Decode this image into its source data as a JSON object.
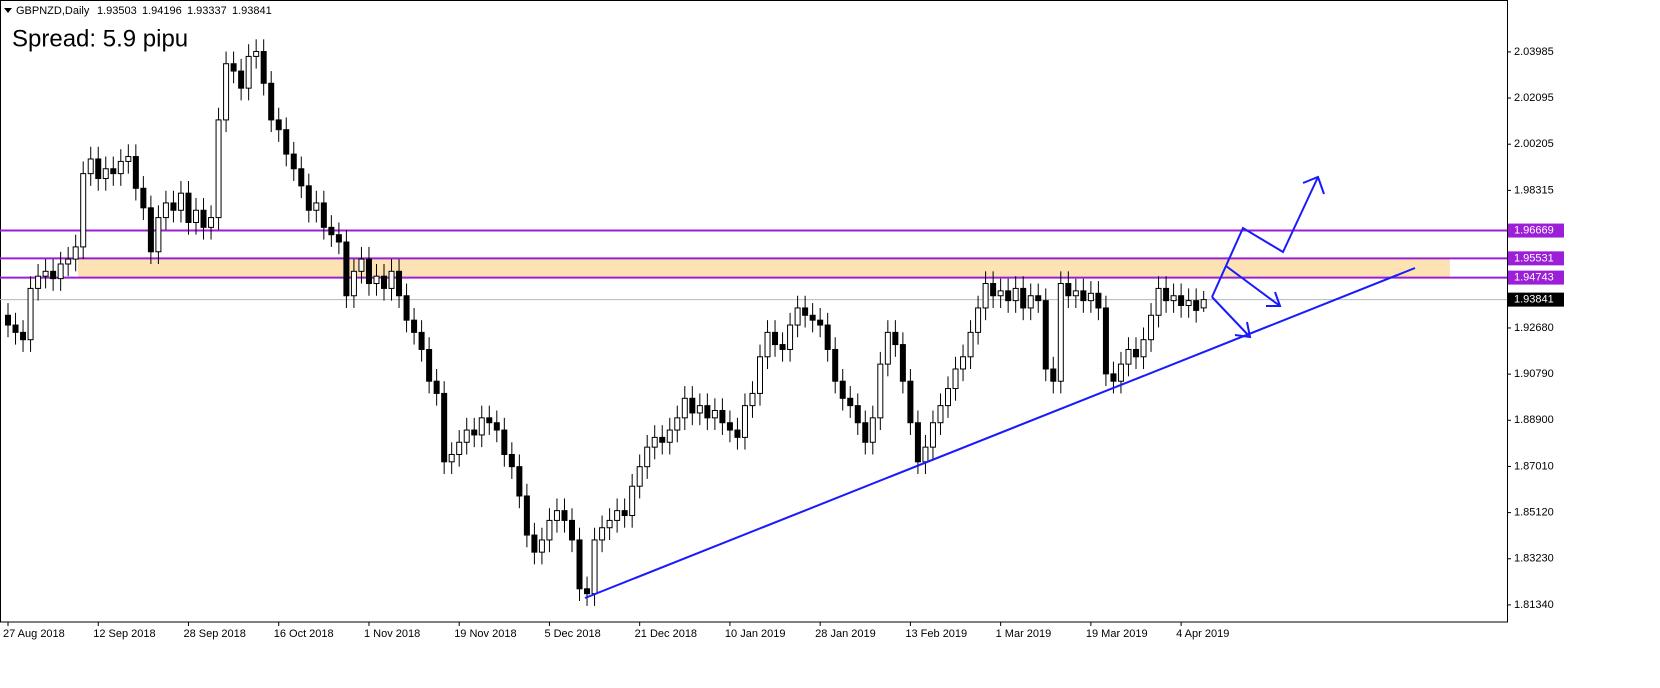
{
  "chart_data": {
    "type": "candlestick",
    "symbol": "GBPNZD,Daily",
    "annotation": "Spread: 5.9 pipu",
    "categories": [
      "27 Aug 2018",
      null,
      null,
      null,
      null,
      null,
      null,
      null,
      null,
      null,
      null,
      null,
      "12 Sep 2018",
      null,
      null,
      null,
      null,
      null,
      null,
      null,
      null,
      null,
      null,
      null,
      "28 Sep 2018",
      null,
      null,
      null,
      null,
      null,
      null,
      null,
      null,
      null,
      null,
      null,
      "16 Oct 2018",
      null,
      null,
      null,
      null,
      null,
      null,
      null,
      null,
      null,
      null,
      null,
      "1 Nov 2018",
      null,
      null,
      null,
      null,
      null,
      null,
      null,
      null,
      null,
      null,
      null,
      "19 Nov 2018",
      null,
      null,
      null,
      null,
      null,
      null,
      null,
      null,
      null,
      null,
      null,
      "5 Dec 2018",
      null,
      null,
      null,
      null,
      null,
      null,
      null,
      null,
      null,
      null,
      null,
      "21 Dec 2018",
      null,
      null,
      null,
      null,
      null,
      null,
      null,
      null,
      null,
      null,
      null,
      "10 Jan 2019",
      null,
      null,
      null,
      null,
      null,
      null,
      null,
      null,
      null,
      null,
      null,
      "28 Jan 2019",
      null,
      null,
      null,
      null,
      null,
      null,
      null,
      null,
      null,
      null,
      null,
      "13 Feb 2019",
      null,
      null,
      null,
      null,
      null,
      null,
      null,
      null,
      null,
      null,
      null,
      "1 Mar 2019",
      null,
      null,
      null,
      null,
      null,
      null,
      null,
      null,
      null,
      null,
      null,
      "19 Mar 2019",
      null,
      null,
      null,
      null,
      null,
      null,
      null,
      null,
      null,
      null,
      null,
      "4 Apr 2019",
      null,
      null,
      null
    ],
    "open": [
      1.932,
      1.928,
      1.925,
      1.922,
      1.943,
      1.948,
      1.95,
      1.947,
      1.953,
      1.955,
      1.96,
      1.99,
      1.996,
      1.988,
      1.992,
      1.99,
      1.995,
      1.997,
      1.984,
      1.976,
      1.958,
      1.972,
      1.978,
      1.975,
      1.982,
      1.97,
      1.975,
      1.968,
      1.972,
      2.012,
      2.035,
      2.032,
      2.025,
      2.038,
      2.04,
      2.027,
      2.012,
      2.008,
      1.998,
      1.992,
      1.985,
      1.975,
      1.978,
      1.968,
      1.965,
      1.962,
      1.94,
      1.95,
      1.955,
      1.945,
      1.948,
      1.943,
      1.95,
      1.94,
      1.93,
      1.925,
      1.918,
      1.905,
      1.9,
      1.872,
      1.875,
      1.88,
      1.885,
      1.883,
      1.89,
      1.888,
      1.885,
      1.875,
      1.87,
      1.858,
      1.842,
      1.835,
      1.84,
      1.848,
      1.852,
      1.848,
      1.84,
      1.82,
      1.818,
      1.84,
      1.845,
      1.848,
      1.852,
      1.85,
      1.862,
      1.87,
      1.878,
      1.882,
      1.88,
      1.885,
      1.89,
      1.898,
      1.892,
      1.895,
      1.89,
      1.893,
      1.888,
      1.885,
      1.882,
      1.895,
      1.9,
      1.915,
      1.925,
      1.92,
      1.918,
      1.928,
      1.935,
      1.932,
      1.93,
      1.928,
      1.918,
      1.905,
      1.898,
      1.895,
      1.888,
      1.88,
      1.89,
      1.912,
      1.925,
      1.92,
      1.905,
      1.888,
      1.872,
      1.878,
      1.888,
      1.895,
      1.902,
      1.91,
      1.915,
      1.925,
      1.935,
      1.945,
      1.94,
      1.942,
      1.938,
      1.943,
      1.935,
      1.94,
      1.938,
      1.91,
      1.905,
      1.945,
      1.94,
      1.942,
      1.938,
      1.941,
      1.935,
      1.908,
      1.905,
      1.912,
      1.918,
      1.915,
      1.922,
      1.932,
      1.943,
      1.938,
      1.94,
      1.936,
      1.938,
      1.93503
    ],
    "high": [
      1.937,
      1.933,
      1.93,
      1.948,
      1.953,
      1.955,
      1.955,
      1.958,
      1.96,
      1.965,
      1.995,
      2.001,
      2.001,
      1.997,
      1.997,
      2.0,
      2.002,
      2.002,
      1.989,
      1.981,
      1.977,
      1.983,
      1.983,
      1.987,
      1.987,
      1.98,
      1.98,
      1.977,
      2.017,
      2.04,
      2.04,
      2.037,
      2.043,
      2.045,
      2.045,
      2.032,
      2.017,
      2.013,
      2.003,
      1.997,
      1.99,
      1.983,
      1.983,
      1.973,
      1.97,
      1.967,
      1.955,
      1.96,
      1.96,
      1.953,
      1.953,
      1.955,
      1.955,
      1.945,
      1.935,
      1.93,
      1.923,
      1.91,
      1.905,
      1.88,
      1.885,
      1.89,
      1.89,
      1.895,
      1.895,
      1.893,
      1.89,
      1.88,
      1.875,
      1.863,
      1.847,
      1.845,
      1.853,
      1.857,
      1.857,
      1.853,
      1.845,
      1.825,
      1.845,
      1.85,
      1.853,
      1.857,
      1.857,
      1.867,
      1.875,
      1.883,
      1.887,
      1.887,
      1.89,
      1.895,
      1.903,
      1.903,
      1.9,
      1.9,
      1.898,
      1.898,
      1.893,
      1.89,
      1.9,
      1.905,
      1.92,
      1.93,
      1.93,
      1.925,
      1.933,
      1.94,
      1.94,
      1.937,
      1.935,
      1.933,
      1.923,
      1.91,
      1.903,
      1.9,
      1.893,
      1.895,
      1.917,
      1.93,
      1.93,
      1.925,
      1.91,
      1.893,
      1.883,
      1.893,
      1.9,
      1.907,
      1.915,
      1.92,
      1.93,
      1.94,
      1.95,
      1.95,
      1.947,
      1.947,
      1.948,
      1.948,
      1.945,
      1.945,
      1.943,
      1.915,
      1.95,
      1.95,
      1.947,
      1.947,
      1.946,
      1.946,
      1.94,
      1.913,
      1.917,
      1.923,
      1.923,
      1.927,
      1.937,
      1.948,
      1.948,
      1.945,
      1.945,
      1.943,
      1.943,
      1.94196
    ],
    "low": [
      1.923,
      1.92,
      1.917,
      1.917,
      1.938,
      1.943,
      1.942,
      1.942,
      1.948,
      1.95,
      1.955,
      1.985,
      1.983,
      1.983,
      1.985,
      1.985,
      1.99,
      1.979,
      1.971,
      1.953,
      1.953,
      1.967,
      1.97,
      1.97,
      1.965,
      1.965,
      1.963,
      1.963,
      1.967,
      2.007,
      2.027,
      2.02,
      2.02,
      2.033,
      2.022,
      2.007,
      2.003,
      1.993,
      1.987,
      1.98,
      1.97,
      1.97,
      1.963,
      1.96,
      1.957,
      1.935,
      1.935,
      1.945,
      1.94,
      1.94,
      1.938,
      1.938,
      1.935,
      1.925,
      1.92,
      1.913,
      1.9,
      1.895,
      1.867,
      1.867,
      1.87,
      1.875,
      1.878,
      1.878,
      1.883,
      1.88,
      1.87,
      1.865,
      1.853,
      1.837,
      1.83,
      1.83,
      1.835,
      1.843,
      1.843,
      1.835,
      1.815,
      1.813,
      1.813,
      1.835,
      1.84,
      1.843,
      1.845,
      1.845,
      1.857,
      1.865,
      1.873,
      1.875,
      1.875,
      1.88,
      1.885,
      1.887,
      1.887,
      1.885,
      1.885,
      1.883,
      1.88,
      1.877,
      1.877,
      1.89,
      1.895,
      1.91,
      1.915,
      1.913,
      1.913,
      1.923,
      1.927,
      1.925,
      1.923,
      1.913,
      1.9,
      1.893,
      1.89,
      1.883,
      1.875,
      1.875,
      1.885,
      1.907,
      1.915,
      1.9,
      1.883,
      1.867,
      1.867,
      1.873,
      1.883,
      1.89,
      1.897,
      1.905,
      1.91,
      1.92,
      1.93,
      1.935,
      1.935,
      1.933,
      1.933,
      1.93,
      1.93,
      1.933,
      1.905,
      1.9,
      1.9,
      1.935,
      1.935,
      1.933,
      1.933,
      1.93,
      1.903,
      1.9,
      1.9,
      1.907,
      1.91,
      1.91,
      1.917,
      1.927,
      1.933,
      1.933,
      1.931,
      1.931,
      1.929,
      1.93337
    ],
    "close": [
      1.928,
      1.925,
      1.922,
      1.943,
      1.948,
      1.95,
      1.947,
      1.953,
      1.955,
      1.96,
      1.99,
      1.996,
      1.988,
      1.992,
      1.99,
      1.995,
      1.997,
      1.984,
      1.976,
      1.958,
      1.972,
      1.978,
      1.975,
      1.982,
      1.97,
      1.975,
      1.968,
      1.972,
      2.012,
      2.035,
      2.032,
      2.025,
      2.038,
      2.04,
      2.027,
      2.012,
      2.008,
      1.998,
      1.992,
      1.985,
      1.975,
      1.978,
      1.968,
      1.965,
      1.962,
      1.94,
      1.95,
      1.955,
      1.945,
      1.948,
      1.943,
      1.95,
      1.94,
      1.93,
      1.925,
      1.918,
      1.905,
      1.9,
      1.872,
      1.875,
      1.88,
      1.885,
      1.883,
      1.89,
      1.888,
      1.885,
      1.875,
      1.87,
      1.858,
      1.842,
      1.835,
      1.84,
      1.848,
      1.852,
      1.848,
      1.84,
      1.82,
      1.818,
      1.84,
      1.845,
      1.848,
      1.852,
      1.85,
      1.862,
      1.87,
      1.878,
      1.882,
      1.88,
      1.885,
      1.89,
      1.898,
      1.892,
      1.895,
      1.89,
      1.893,
      1.888,
      1.885,
      1.882,
      1.895,
      1.9,
      1.915,
      1.925,
      1.92,
      1.918,
      1.928,
      1.935,
      1.932,
      1.93,
      1.928,
      1.918,
      1.905,
      1.898,
      1.895,
      1.888,
      1.88,
      1.89,
      1.912,
      1.925,
      1.92,
      1.905,
      1.888,
      1.872,
      1.878,
      1.888,
      1.895,
      1.902,
      1.91,
      1.915,
      1.925,
      1.935,
      1.945,
      1.94,
      1.942,
      1.938,
      1.943,
      1.935,
      1.94,
      1.938,
      1.91,
      1.905,
      1.945,
      1.94,
      1.942,
      1.938,
      1.941,
      1.935,
      1.908,
      1.905,
      1.912,
      1.918,
      1.915,
      1.922,
      1.932,
      1.943,
      1.938,
      1.94,
      1.936,
      1.938,
      1.934,
      1.93841
    ],
    "up_color": "#ffffff",
    "down_color": "#000000",
    "ylim": [
      1.8064,
      2.0611
    ],
    "yticks": [
      2.03985,
      2.02095,
      2.00205,
      1.98315,
      {
        "value": 1.9268,
        "label": "1.92680"
      },
      {
        "value": 1.9079,
        "label": "1.90790"
      },
      {
        "value": 1.889,
        "label": "1.88900"
      },
      {
        "value": 1.8701,
        "label": "1.87010"
      },
      {
        "value": 1.8512,
        "label": "1.85120"
      },
      {
        "value": 1.8323,
        "label": "1.83230"
      },
      {
        "value": 1.8134,
        "label": "1.81340"
      }
    ],
    "levels": [
      1.96669,
      1.95531,
      1.94743
    ],
    "level_color": "#9b1fd6",
    "zone_color": "#fde2b4",
    "price_line_color": "#b0b8c0"
  }
}
